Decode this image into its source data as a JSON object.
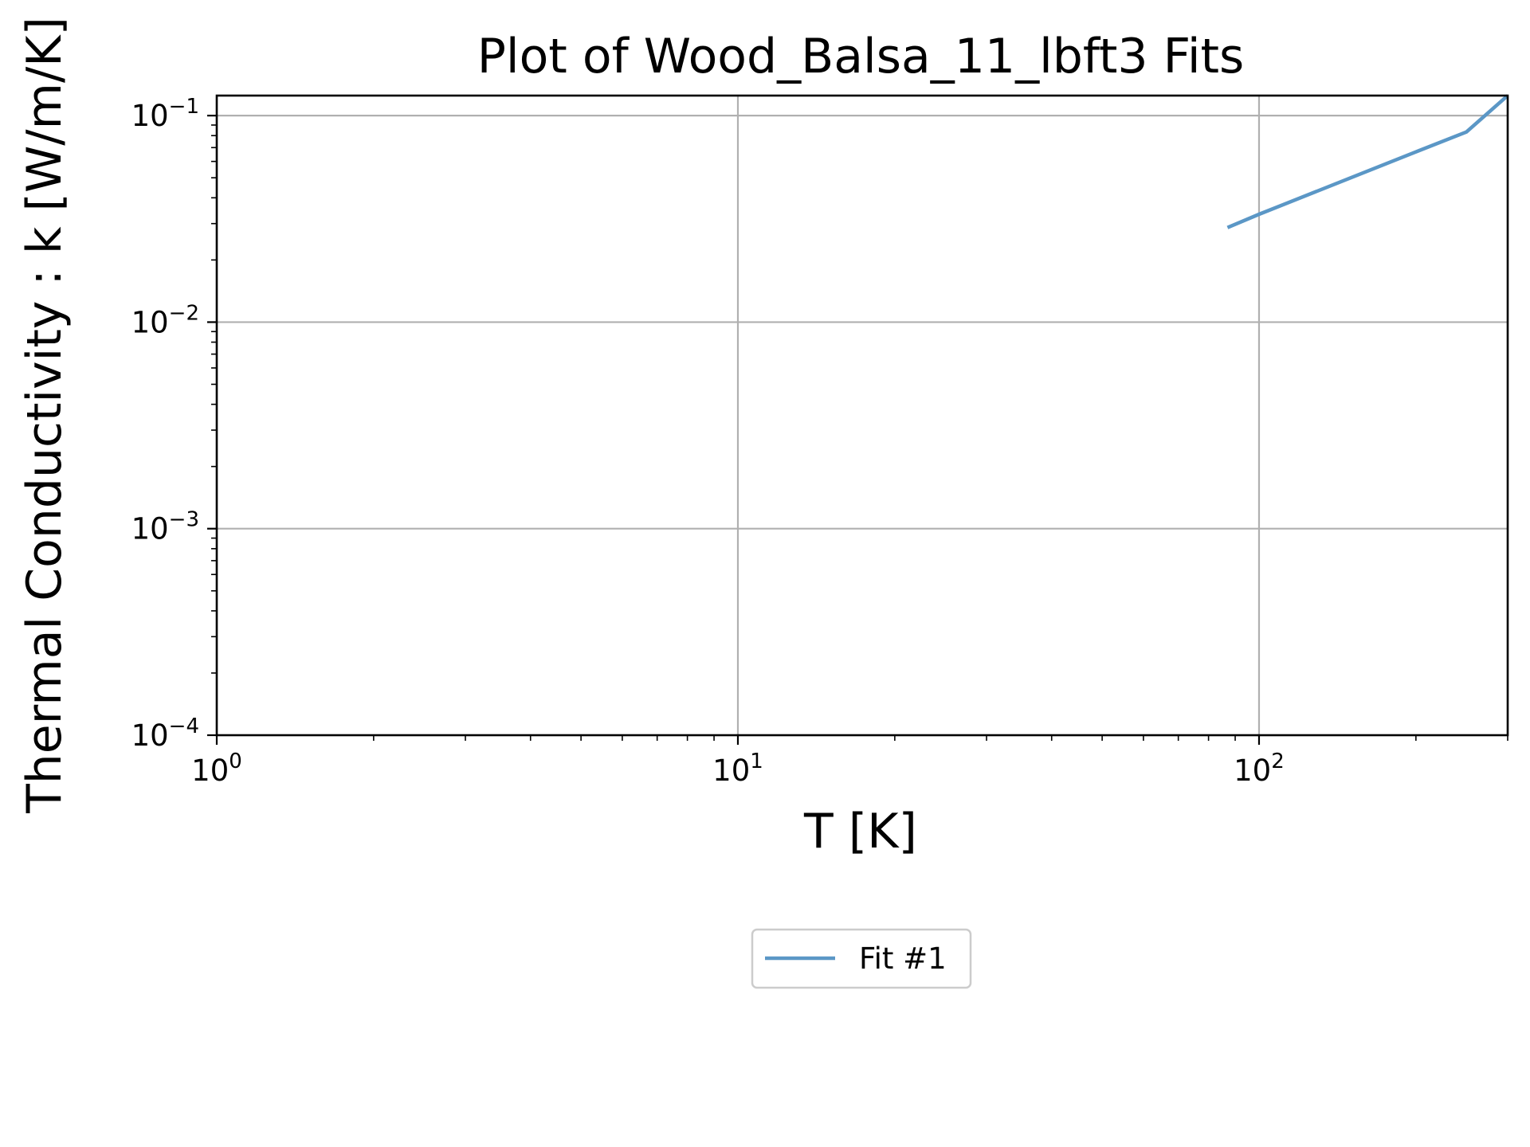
{
  "chart_data": {
    "type": "line",
    "title": "Plot of Wood_Balsa_11_lbft3 Fits",
    "xlabel": "T [K]",
    "ylabel": "Thermal Conductivity : k [W/m/K]",
    "xscale": "log",
    "yscale": "log",
    "xlim": [
      1,
      300
    ],
    "ylim": [
      0.0001,
      0.125
    ],
    "grid": true,
    "legend_position": "below-center",
    "x_ticks": [
      {
        "base": "10",
        "exp": "0"
      },
      {
        "base": "10",
        "exp": "1"
      },
      {
        "base": "10",
        "exp": "2"
      }
    ],
    "y_ticks": [
      {
        "base": "10",
        "exp": "−1"
      },
      {
        "base": "10",
        "exp": "−2"
      },
      {
        "base": "10",
        "exp": "−3"
      },
      {
        "base": "10",
        "exp": "−4"
      }
    ],
    "series": [
      {
        "name": "Fit #1",
        "color": "#5b97c6",
        "x": [
          87,
          100,
          150,
          200,
          250,
          300
        ],
        "y": [
          0.0287,
          0.0333,
          0.05,
          0.0667,
          0.0833,
          0.125
        ]
      }
    ]
  }
}
